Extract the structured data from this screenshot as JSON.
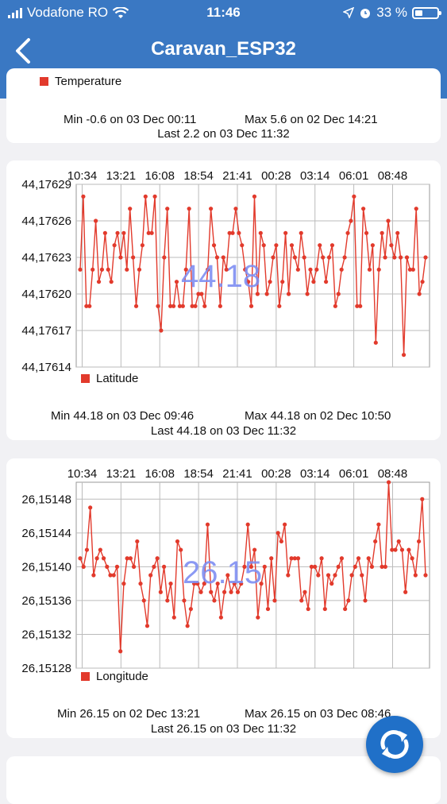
{
  "status_bar": {
    "carrier": "Vodafone RO",
    "time": "11:46",
    "battery": "33 %"
  },
  "header": {
    "title": "Caravan_ESP32"
  },
  "temperature_card": {
    "legend": "Temperature",
    "min": "Min -0.6 on 03 Dec 00:11",
    "max": "Max 5.6 on 02 Dec 14:21",
    "last": "Last 2.2 on 03 Dec 11:32"
  },
  "latitude_card": {
    "legend": "Latitude",
    "current": "44.18",
    "min": "Min 44.18 on 03 Dec 09:46",
    "max": "Max 44.18 on 02 Dec 10:50",
    "last": "Last 44.18 on 03 Dec 11:32"
  },
  "longitude_card": {
    "legend": "Longitude",
    "current": "26.15",
    "min": "Min 26.15 on 02 Dec 13:21",
    "max": "Max 26.15 on 03 Dec 08:46",
    "last": "Last 26.15 on 03 Dec 11:32"
  },
  "colors": {
    "header": "#3a78c3",
    "series": "#e23a2c",
    "fab": "#2070c8"
  },
  "chart_data": [
    {
      "type": "line",
      "x_tick_labels": [
        "10:34",
        "13:21",
        "16:08",
        "18:54",
        "21:41",
        "00:28",
        "03:14",
        "06:01",
        "08:48"
      ],
      "y_tick_labels": [
        "44,17629",
        "44,17626",
        "44,17623",
        "44,17620",
        "44,17617",
        "44,17614"
      ],
      "ylim": [
        44.17614,
        44.17629
      ],
      "grid": true,
      "legend": "bottom-left",
      "series": [
        {
          "name": "Latitude",
          "values": [
            44.17622,
            44.17628,
            44.17619,
            44.17619,
            44.17622,
            44.17626,
            44.17621,
            44.17622,
            44.17625,
            44.17622,
            44.17621,
            44.17624,
            44.17625,
            44.17623,
            44.17625,
            44.17622,
            44.17627,
            44.17623,
            44.17619,
            44.17622,
            44.17624,
            44.17628,
            44.17625,
            44.17625,
            44.17628,
            44.17619,
            44.17617,
            44.17623,
            44.17627,
            44.17619,
            44.17619,
            44.17621,
            44.17619,
            44.17619,
            44.17622,
            44.17627,
            44.17619,
            44.17619,
            44.1762,
            44.1762,
            44.17619,
            44.17622,
            44.17627,
            44.17624,
            44.17623,
            44.17619,
            44.17623,
            44.17622,
            44.17625,
            44.17625,
            44.17627,
            44.17625,
            44.17624,
            44.17622,
            44.17621,
            44.17619,
            44.17628,
            44.1762,
            44.17625,
            44.17624,
            44.1762,
            44.17621,
            44.17623,
            44.17624,
            44.17619,
            44.17621,
            44.17625,
            44.1762,
            44.17624,
            44.17623,
            44.17622,
            44.17625,
            44.17623,
            44.1762,
            44.17622,
            44.17621,
            44.17622,
            44.17624,
            44.17623,
            44.17621,
            44.17623,
            44.17624,
            44.17619,
            44.1762,
            44.17622,
            44.17623,
            44.17625,
            44.17626,
            44.17628,
            44.17619,
            44.17619,
            44.17627,
            44.17625,
            44.17622,
            44.17624,
            44.17616,
            44.17622,
            44.17625,
            44.17623,
            44.17626,
            44.17624,
            44.17623,
            44.17625,
            44.17623,
            44.17615,
            44.17623,
            44.17622,
            44.17622,
            44.17627,
            44.1762,
            44.17621,
            44.17623
          ]
        }
      ]
    },
    {
      "type": "line",
      "x_tick_labels": [
        "10:34",
        "13:21",
        "16:08",
        "18:54",
        "21:41",
        "00:28",
        "03:14",
        "06:01",
        "08:48"
      ],
      "y_tick_labels": [
        "26,15148",
        "26,15144",
        "26,15140",
        "26,15136",
        "26,15132",
        "26,15128"
      ],
      "ylim": [
        26.15128,
        26.1515
      ],
      "grid": true,
      "legend": "bottom-left",
      "series": [
        {
          "name": "Longitude",
          "values": [
            26.15141,
            26.1514,
            26.15142,
            26.15147,
            26.15139,
            26.15141,
            26.15142,
            26.15141,
            26.1514,
            26.15139,
            26.15139,
            26.1514,
            26.1513,
            26.15138,
            26.15141,
            26.15141,
            26.1514,
            26.15143,
            26.15138,
            26.15136,
            26.15133,
            26.15139,
            26.1514,
            26.15141,
            26.15137,
            26.1514,
            26.15136,
            26.15138,
            26.15134,
            26.15143,
            26.15142,
            26.15136,
            26.15133,
            26.15135,
            26.15138,
            26.15138,
            26.15137,
            26.15138,
            26.15145,
            26.15137,
            26.15136,
            26.15138,
            26.15134,
            26.15137,
            26.15139,
            26.15137,
            26.15138,
            26.15137,
            26.15138,
            26.1514,
            26.15145,
            26.1514,
            26.15142,
            26.15134,
            26.15138,
            26.1514,
            26.15135,
            26.15141,
            26.15136,
            26.15144,
            26.15143,
            26.15145,
            26.15139,
            26.15141,
            26.15141,
            26.15141,
            26.15136,
            26.15137,
            26.15135,
            26.1514,
            26.1514,
            26.15139,
            26.15141,
            26.15135,
            26.15139,
            26.15138,
            26.15139,
            26.1514,
            26.15141,
            26.15135,
            26.15136,
            26.15139,
            26.1514,
            26.15141,
            26.15139,
            26.15136,
            26.15141,
            26.1514,
            26.15143,
            26.15145,
            26.1514,
            26.1514,
            26.1515,
            26.15142,
            26.15142,
            26.15143,
            26.15142,
            26.15137,
            26.15142,
            26.15141,
            26.15139,
            26.15143,
            26.15148,
            26.15139
          ]
        }
      ]
    }
  ]
}
